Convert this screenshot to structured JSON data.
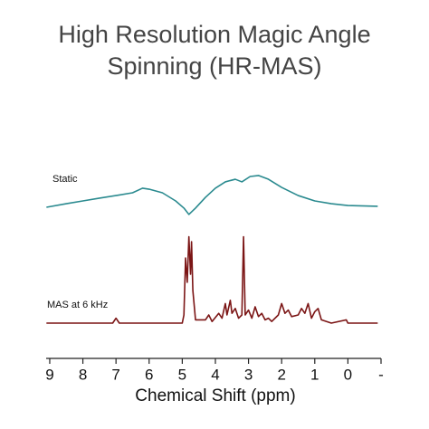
{
  "chart_data": {
    "type": "line",
    "title": [
      "High Resolution Magic Angle",
      "Spinning (HR-MAS)"
    ],
    "x_label": "Chemical Shift (ppm)",
    "xlim": [
      9.1,
      -1
    ],
    "xticks": [
      9,
      8,
      7,
      6,
      5,
      4,
      3,
      2,
      1,
      0,
      {
        "value": -1,
        "label": "-"
      }
    ],
    "ylim": [
      0,
      100
    ],
    "series": [
      {
        "name": "Static",
        "color": "#2a8a8f",
        "x": [
          9.1,
          8.5,
          8,
          7.5,
          7,
          6.5,
          6.2,
          6,
          5.6,
          5.2,
          4.95,
          4.8,
          4.6,
          4.3,
          4,
          3.7,
          3.4,
          3.2,
          2.95,
          2.7,
          2.4,
          2,
          1.5,
          1,
          0.5,
          0,
          -0.9
        ],
        "values": [
          71.1,
          73.3,
          75,
          76.7,
          78.3,
          80,
          82.8,
          82.2,
          80,
          75,
          70.6,
          66.7,
          70.6,
          77.2,
          82.8,
          86.7,
          88.3,
          86.7,
          90,
          90.6,
          88.3,
          83.3,
          78.3,
          75,
          73.3,
          72.2,
          71.7
        ]
      },
      {
        "name": "MAS at 6 kHz",
        "color": "#7b1515",
        "x": [
          9.1,
          7.1,
          7.0,
          6.9,
          5.0,
          4.95,
          4.9,
          4.85,
          4.8,
          4.75,
          4.72,
          4.68,
          4.6,
          4.3,
          4.2,
          4.1,
          3.9,
          3.8,
          3.7,
          3.65,
          3.55,
          3.5,
          3.4,
          3.3,
          3.2,
          3.15,
          3.1,
          3.0,
          2.9,
          2.8,
          2.7,
          2.6,
          2.5,
          2.4,
          2.3,
          2.1,
          2.0,
          1.9,
          1.8,
          1.7,
          1.5,
          1.4,
          1.3,
          1.2,
          1.1,
          1.0,
          0.9,
          0.8,
          0.5,
          0.05,
          0,
          -0.9
        ],
        "values": [
          0,
          0,
          3,
          0,
          0,
          5,
          40,
          25,
          53,
          30,
          50,
          20,
          2,
          2,
          5,
          1,
          6,
          3,
          12,
          5,
          14,
          6,
          9,
          3,
          5,
          53,
          5,
          8,
          3,
          10,
          4,
          6,
          2,
          3,
          1,
          5,
          12,
          6,
          8,
          4,
          5,
          9,
          6,
          12,
          3,
          7,
          9,
          2,
          0,
          2,
          0,
          0
        ]
      }
    ]
  }
}
